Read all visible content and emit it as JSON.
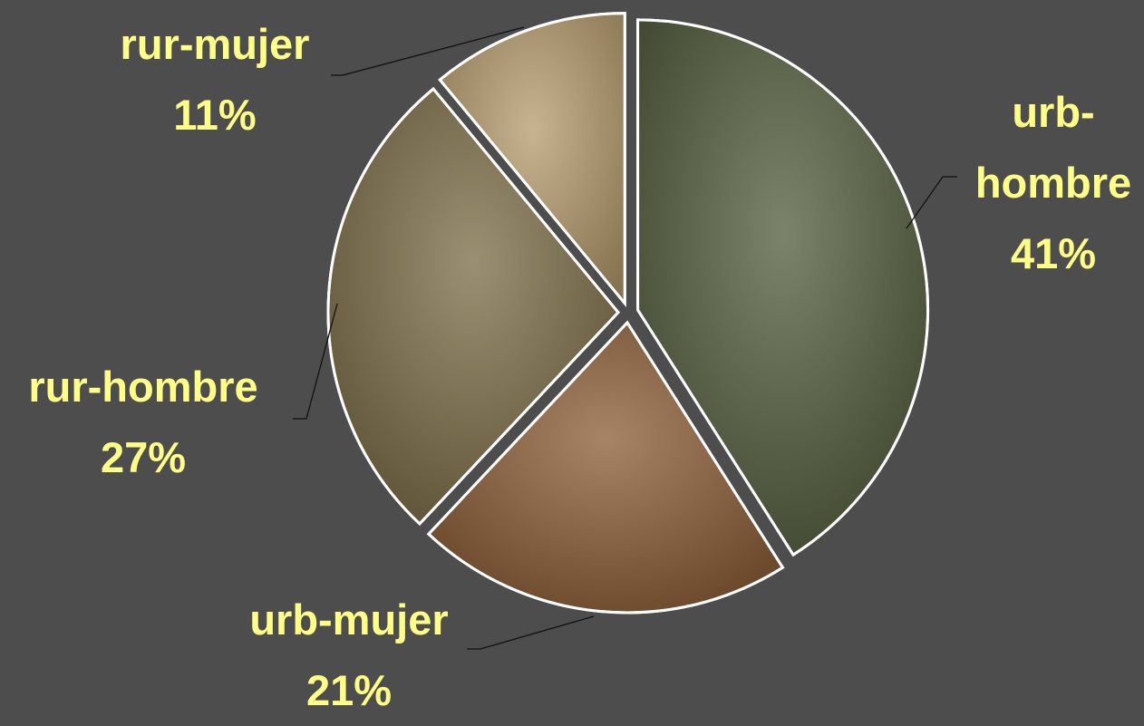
{
  "chart_data": {
    "type": "pie",
    "categories": [
      "urb-hombre",
      "urb-mujer",
      "rur-hombre",
      "rur-mujer"
    ],
    "values": [
      41,
      21,
      27,
      11
    ],
    "value_labels": [
      "41%",
      "21%",
      "27%",
      "11%"
    ],
    "colors": [
      "#4f5a3a",
      "#8a5a34",
      "#7a6a44",
      "#b49a6a"
    ]
  }
}
